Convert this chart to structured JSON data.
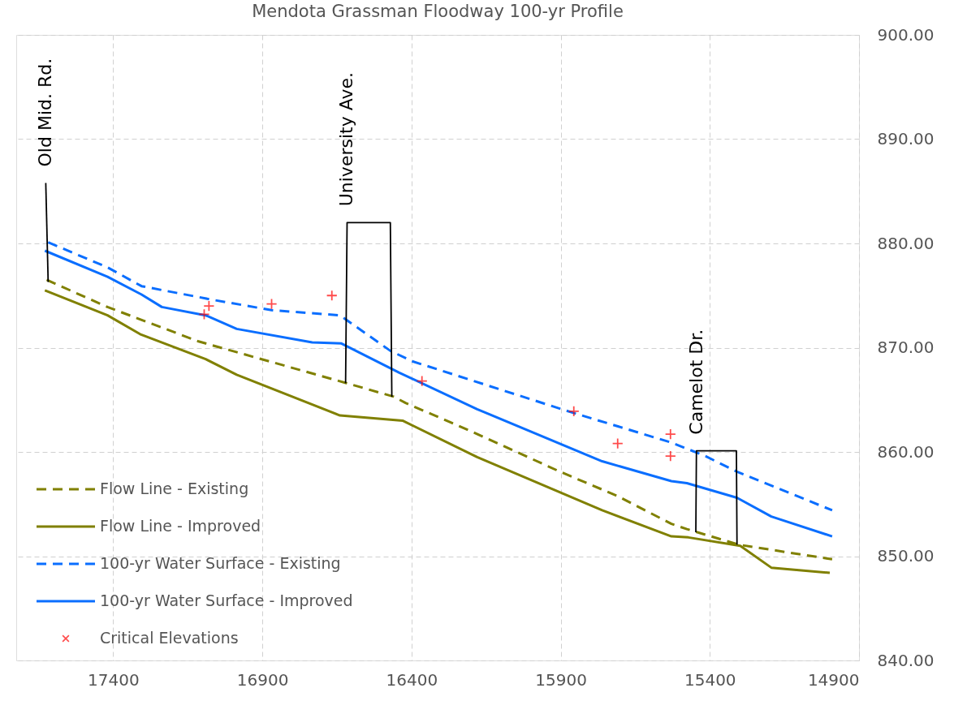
{
  "chart_data": {
    "type": "line",
    "title": "Mendota Grassman Floodway 100-yr Profile",
    "xlim": [
      17725,
      14900
    ],
    "xticks": [
      17400,
      16900,
      16400,
      15900,
      15400,
      14900
    ],
    "ylim": [
      840,
      900
    ],
    "yticks": [
      {
        "value": 840,
        "label": "840.00"
      },
      {
        "value": 850,
        "label": "850.00"
      },
      {
        "value": 860,
        "label": "860.00"
      },
      {
        "value": 870,
        "label": "870.00"
      },
      {
        "value": 880,
        "label": "880.00"
      },
      {
        "value": 890,
        "label": "890.00"
      },
      {
        "value": 900,
        "label": "900.00"
      }
    ],
    "grid": true,
    "legend": "bottom left",
    "series": [
      {
        "name": "Flow Line - Existing",
        "line_style": "dashed",
        "color": "#808000",
        "x": [
          17623,
          17419,
          17114,
          16618,
          16460,
          16420,
          16202,
          15902,
          15712,
          15529,
          15477,
          15303,
          14990
        ],
        "values": [
          876.5,
          873.9,
          870.6,
          866.6,
          865.3,
          864.7,
          862.0,
          858.1,
          855.8,
          853.1,
          852.6,
          851.1,
          849.7
        ]
      },
      {
        "name": "Flow Line - Improved",
        "line_style": "solid",
        "color": "#808000",
        "x": [
          17629,
          17419,
          17310,
          17090,
          16986,
          16640,
          16430,
          16180,
          15761,
          15529,
          15472,
          15298,
          15194,
          14998
        ],
        "values": [
          875.5,
          873.1,
          871.3,
          868.9,
          867.4,
          863.5,
          863.0,
          859.5,
          854.4,
          851.9,
          851.8,
          851.0,
          848.9,
          848.4
        ]
      },
      {
        "name": "100-yr Water Surface - Existing",
        "line_style": "dashed",
        "color": "#0a6eff",
        "x": [
          17618,
          17419,
          17305,
          17068,
          16869,
          16640,
          16471,
          16398,
          15864,
          15529,
          15415,
          15309,
          14990
        ],
        "values": [
          880.1,
          877.7,
          875.9,
          874.6,
          873.6,
          873.1,
          869.7,
          868.7,
          863.8,
          860.9,
          859.6,
          858.1,
          854.4
        ]
      },
      {
        "name": "100-yr Water Surface - Improved",
        "line_style": "solid",
        "color": "#0a6eff",
        "x": [
          17629,
          17419,
          17305,
          17237,
          17090,
          16986,
          16733,
          16635,
          16441,
          16180,
          15761,
          15529,
          15477,
          15309,
          15194,
          14990
        ],
        "values": [
          879.3,
          876.8,
          875.1,
          873.9,
          873.1,
          871.8,
          870.5,
          870.4,
          867.6,
          864.1,
          859.1,
          857.2,
          857.0,
          855.6,
          853.8,
          851.9
        ]
      },
      {
        "name": "Critical Elevations",
        "type": "scatter",
        "marker": "cross",
        "color": "#ff0000",
        "x": [
          17095,
          17079,
          16869,
          16667,
          16365,
          15856,
          15709,
          15532,
          15532
        ],
        "values": [
          873.2,
          874.0,
          874.2,
          875.0,
          866.8,
          863.9,
          860.8,
          861.7,
          859.6
        ]
      },
      {
        "line_style": "solid",
        "color": "#000000",
        "x": [
          17626,
          17618
        ],
        "values": [
          885.8,
          876.3
        ]
      },
      {
        "line_style": "solid",
        "color": "#000000",
        "x": [
          16621,
          16616,
          16471,
          16466
        ],
        "values": [
          866.6,
          882.0,
          882.0,
          865.3
        ]
      },
      {
        "line_style": "solid",
        "color": "#000000",
        "x": [
          15447,
          15445,
          15311,
          15309
        ],
        "values": [
          852.3,
          860.1,
          860.1,
          851.1
        ]
      }
    ],
    "annotations": [
      {
        "text": "Old Mid. Rd.",
        "x": 17626,
        "y": 885.8
      },
      {
        "text": "University Ave.",
        "x": 16616,
        "y": 882.0
      },
      {
        "text": "Camelot Dr.",
        "x": 15445,
        "y": 860.1
      }
    ]
  }
}
